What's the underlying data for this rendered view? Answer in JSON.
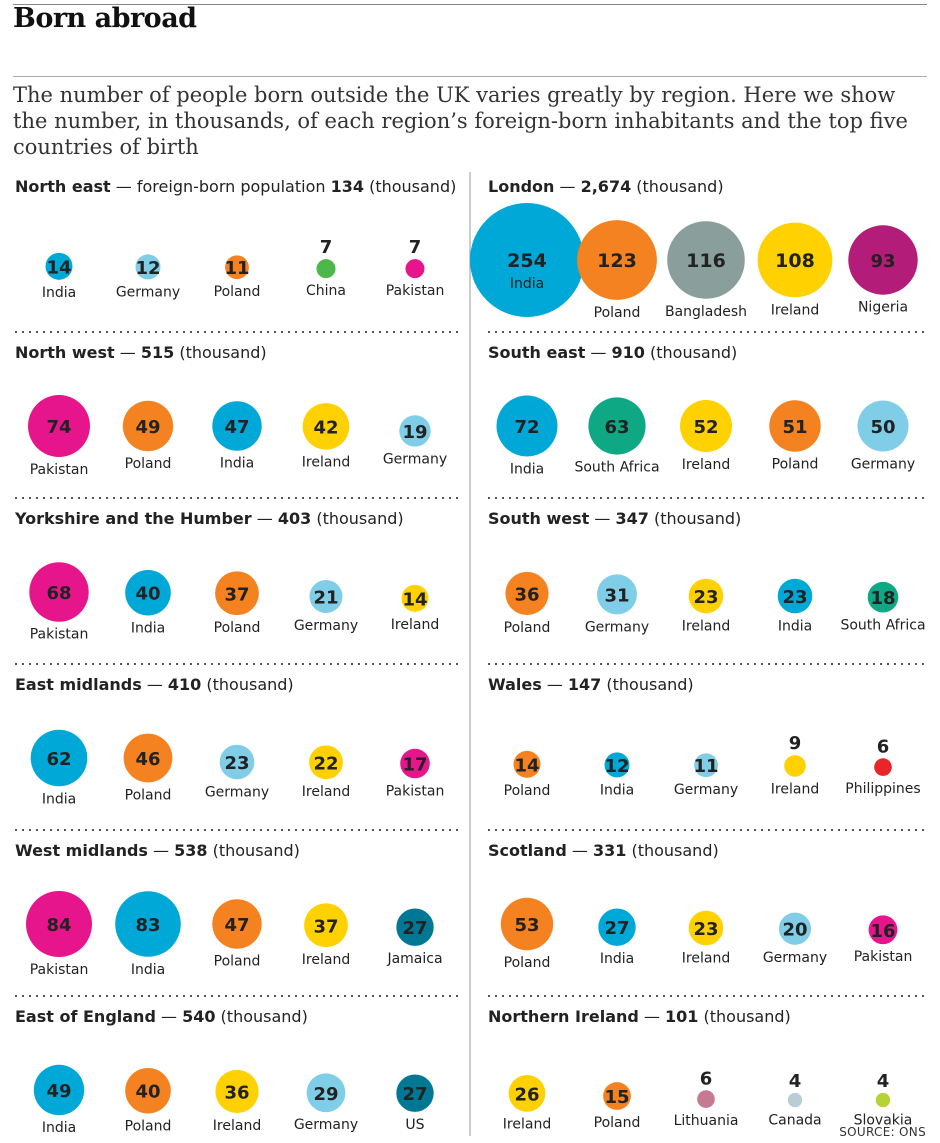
{
  "headline": "Born abroad",
  "standfirst": "The number of people born outside the UK varies greatly by region. Here we show the number, in thousands, of each region’s foreign-born inhabitants and the top five countries of birth",
  "source": "SOURCE: ONS",
  "colors": {
    "India": "#00a8d8",
    "Germany": "#7fcde6",
    "Poland": "#f58220",
    "China": "#4bb849",
    "Pakistan": "#e6158c",
    "Ireland": "#ffd100",
    "Bangladesh": "#8a9e9b",
    "Nigeria": "#b31c78",
    "South Africa": "#0fa884",
    "Philippines": "#e8262a",
    "Jamaica": "#007894",
    "US": "#007894",
    "Lithuania": "#c67a91",
    "Canada": "#b9cdd6",
    "Slovakia": "#b5d334"
  },
  "chart_data": {
    "type": "bubble",
    "unit": "thousand",
    "regions": [
      {
        "name": "North east",
        "label": "— foreign-born population",
        "total": "134",
        "suffix": "(thousand)",
        "countries": [
          {
            "country": "India",
            "value": 14
          },
          {
            "country": "Germany",
            "value": 12
          },
          {
            "country": "Poland",
            "value": 11
          },
          {
            "country": "China",
            "value": 7
          },
          {
            "country": "Pakistan",
            "value": 7
          }
        ]
      },
      {
        "name": "London",
        "label": "—",
        "total": "2,674",
        "suffix": "(thousand)",
        "countries": [
          {
            "country": "India",
            "value": 254
          },
          {
            "country": "Poland",
            "value": 123
          },
          {
            "country": "Bangladesh",
            "value": 116
          },
          {
            "country": "Ireland",
            "value": 108
          },
          {
            "country": "Nigeria",
            "value": 93
          }
        ]
      },
      {
        "name": "North west",
        "label": "—",
        "total": "515",
        "suffix": "(thousand)",
        "countries": [
          {
            "country": "Pakistan",
            "value": 74
          },
          {
            "country": "Poland",
            "value": 49
          },
          {
            "country": "India",
            "value": 47
          },
          {
            "country": "Ireland",
            "value": 42
          },
          {
            "country": "Germany",
            "value": 19
          }
        ]
      },
      {
        "name": "South east",
        "label": "—",
        "total": "910",
        "suffix": "(thousand)",
        "countries": [
          {
            "country": "India",
            "value": 72
          },
          {
            "country": "South Africa",
            "value": 63
          },
          {
            "country": "Ireland",
            "value": 52
          },
          {
            "country": "Poland",
            "value": 51
          },
          {
            "country": "Germany",
            "value": 50
          }
        ]
      },
      {
        "name": "Yorkshire and the Humber",
        "label": "—",
        "total": "403",
        "suffix": "(thousand)",
        "countries": [
          {
            "country": "Pakistan",
            "value": 68
          },
          {
            "country": "India",
            "value": 40
          },
          {
            "country": "Poland",
            "value": 37
          },
          {
            "country": "Germany",
            "value": 21
          },
          {
            "country": "Ireland",
            "value": 14
          }
        ]
      },
      {
        "name": "South west",
        "label": "—",
        "total": "347",
        "suffix": "(thousand)",
        "countries": [
          {
            "country": "Poland",
            "value": 36
          },
          {
            "country": "Germany",
            "value": 31
          },
          {
            "country": "Ireland",
            "value": 23
          },
          {
            "country": "India",
            "value": 23
          },
          {
            "country": "South Africa",
            "value": 18
          }
        ]
      },
      {
        "name": "East midlands",
        "label": "—",
        "total": "410",
        "suffix": "(thousand)",
        "countries": [
          {
            "country": "India",
            "value": 62
          },
          {
            "country": "Poland",
            "value": 46
          },
          {
            "country": "Germany",
            "value": 23
          },
          {
            "country": "Ireland",
            "value": 22
          },
          {
            "country": "Pakistan",
            "value": 17
          }
        ]
      },
      {
        "name": "Wales",
        "label": "—",
        "total": "147",
        "suffix": "(thousand)",
        "countries": [
          {
            "country": "Poland",
            "value": 14
          },
          {
            "country": "India",
            "value": 12
          },
          {
            "country": "Germany",
            "value": 11
          },
          {
            "country": "Ireland",
            "value": 9
          },
          {
            "country": "Philippines",
            "value": 6
          }
        ]
      },
      {
        "name": "West midlands",
        "label": "—",
        "total": "538",
        "suffix": "(thousand)",
        "countries": [
          {
            "country": "Pakistan",
            "value": 84
          },
          {
            "country": "India",
            "value": 83
          },
          {
            "country": "Poland",
            "value": 47
          },
          {
            "country": "Ireland",
            "value": 37
          },
          {
            "country": "Jamaica",
            "value": 27
          }
        ]
      },
      {
        "name": "Scotland",
        "label": "—",
        "total": "331",
        "suffix": "(thousand)",
        "countries": [
          {
            "country": "Poland",
            "value": 53
          },
          {
            "country": "India",
            "value": 27
          },
          {
            "country": "Ireland",
            "value": 23
          },
          {
            "country": "Germany",
            "value": 20
          },
          {
            "country": "Pakistan",
            "value": 16
          }
        ]
      },
      {
        "name": "East of England",
        "label": "—",
        "total": "540",
        "suffix": "(thousand)",
        "countries": [
          {
            "country": "India",
            "value": 49
          },
          {
            "country": "Poland",
            "value": 40
          },
          {
            "country": "Ireland",
            "value": 36
          },
          {
            "country": "Germany",
            "value": 29
          },
          {
            "country": "US",
            "value": 27
          }
        ]
      },
      {
        "name": "Northern Ireland",
        "label": "—",
        "total": "101",
        "suffix": "(thousand)",
        "countries": [
          {
            "country": "Ireland",
            "value": 26
          },
          {
            "country": "Poland",
            "value": 15
          },
          {
            "country": "Lithuania",
            "value": 6
          },
          {
            "country": "Canada",
            "value": 4
          },
          {
            "country": "Slovakia",
            "value": 4
          }
        ]
      }
    ]
  }
}
